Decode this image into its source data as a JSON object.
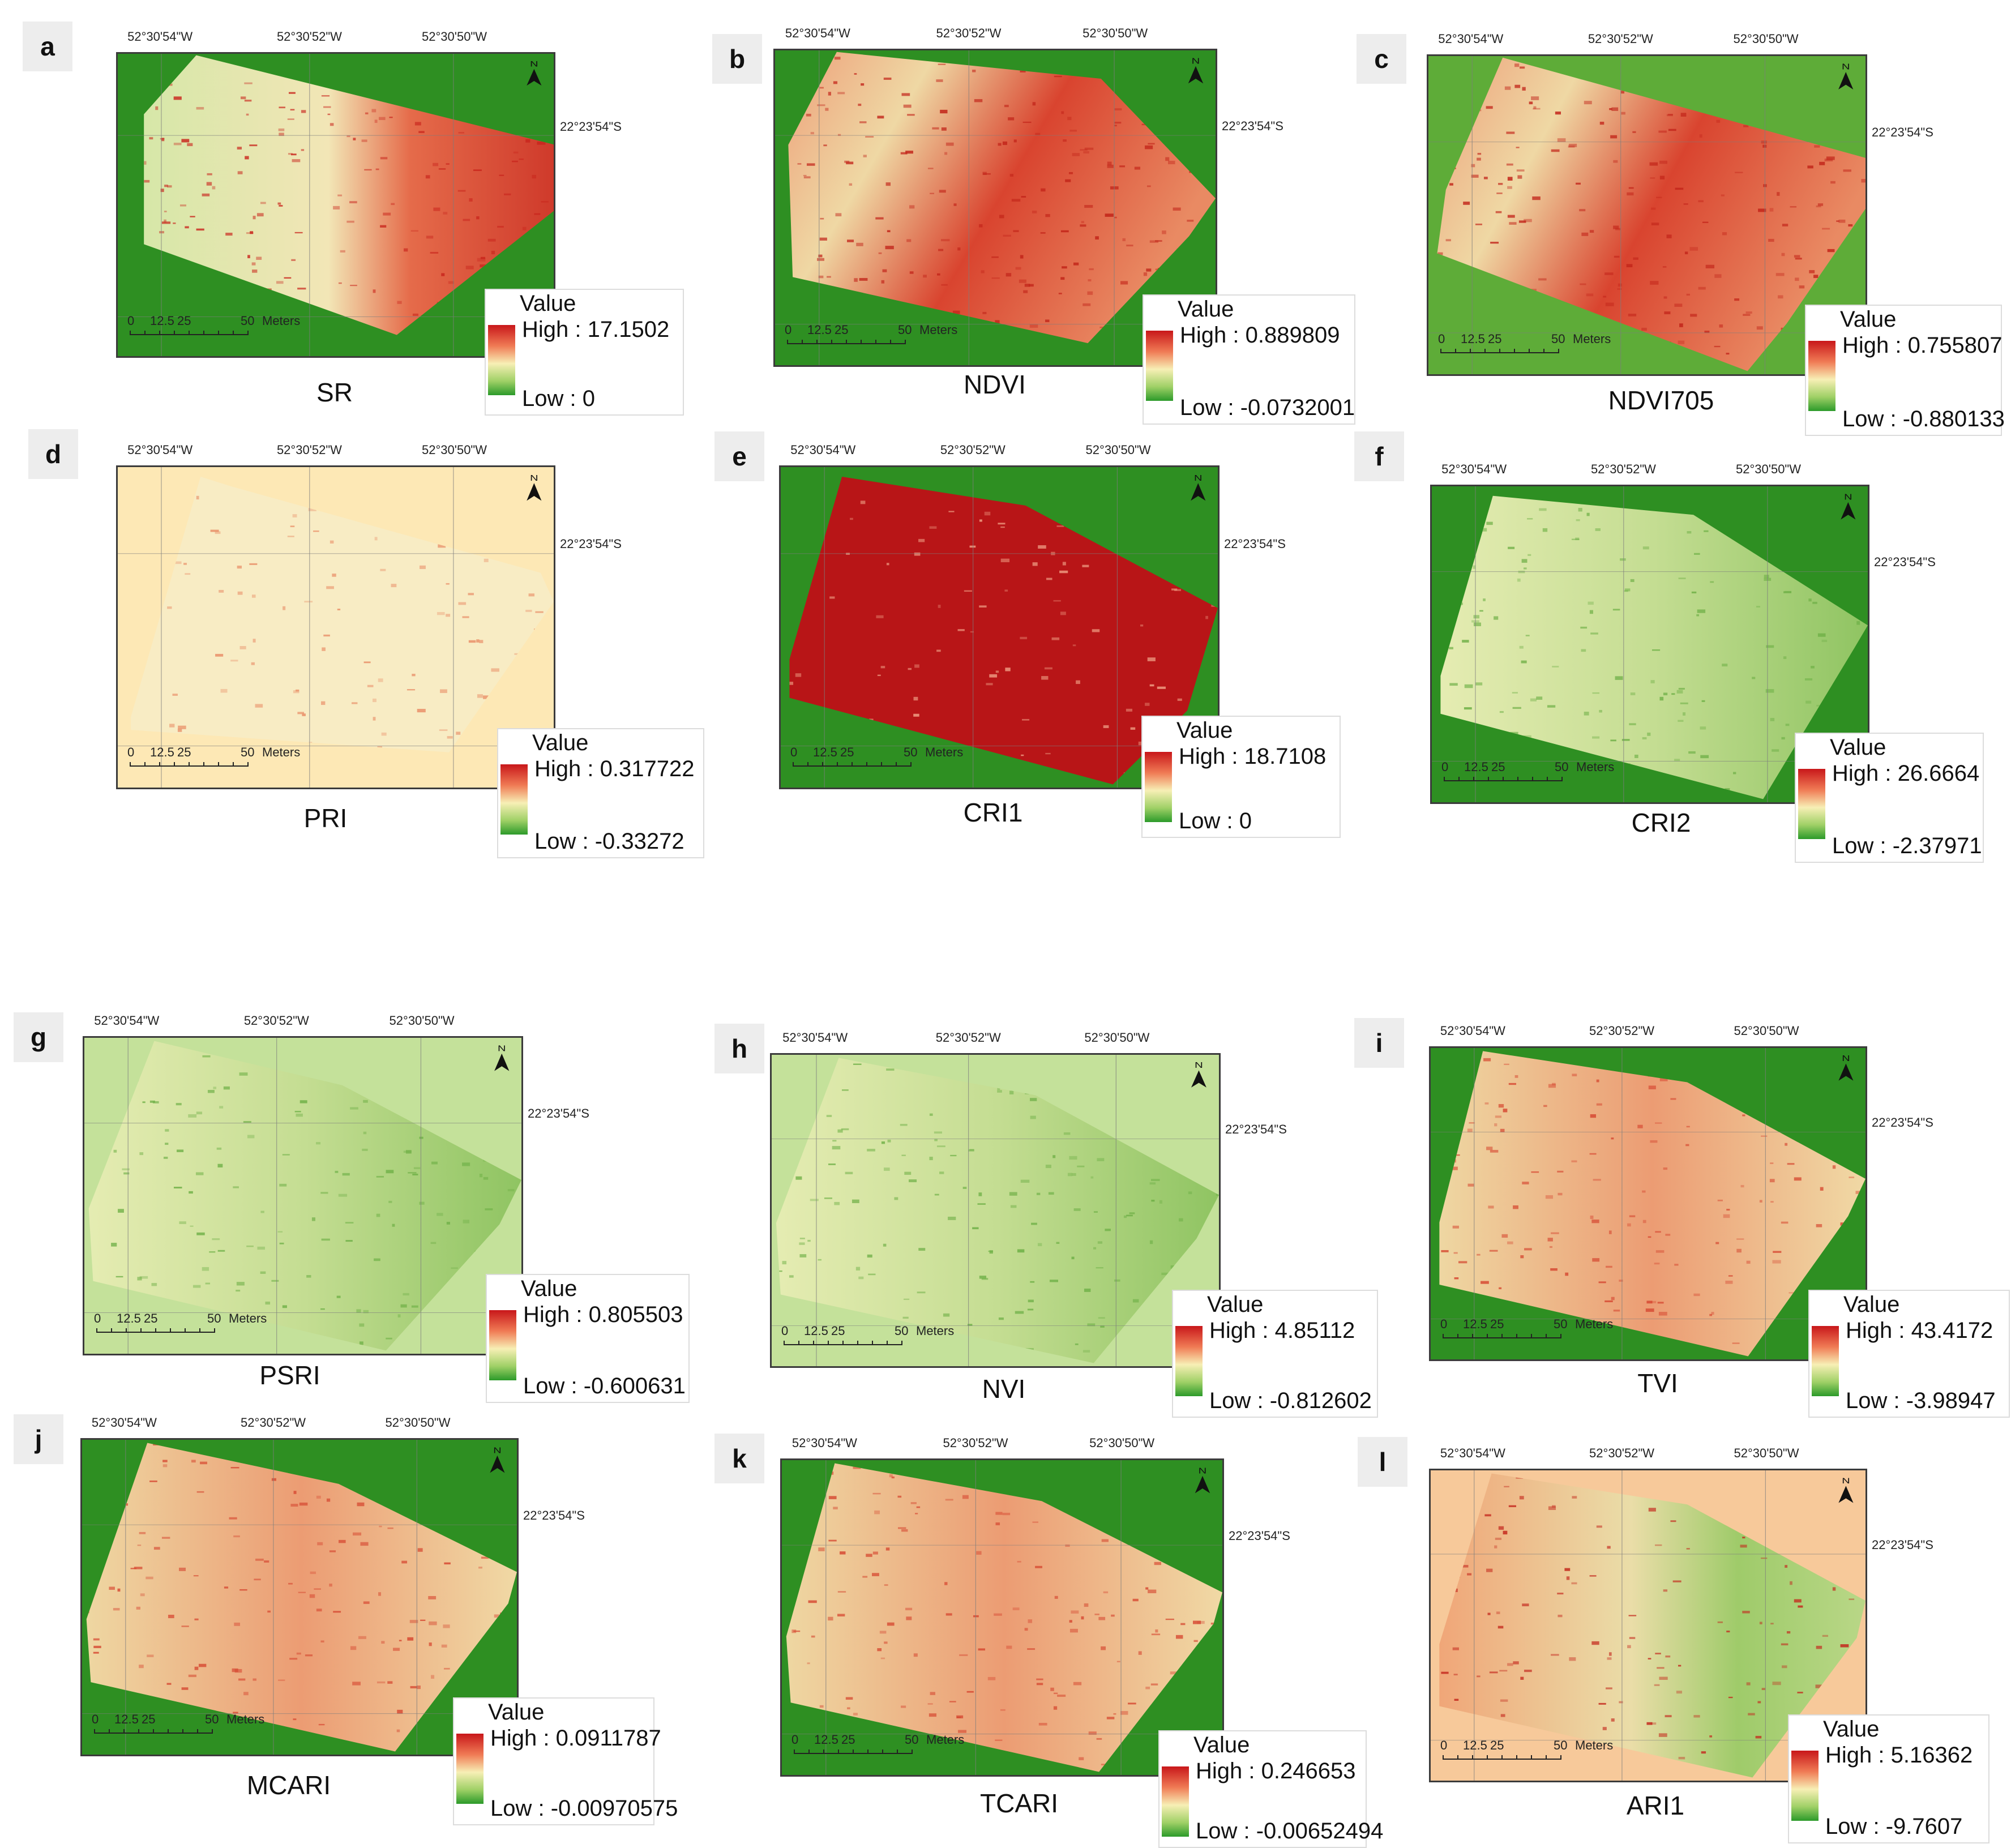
{
  "common": {
    "lon_labels": [
      "52°30'54\"W",
      "52°30'52\"W",
      "52°30'50\"W"
    ],
    "lat_label": "22°23'54\"S",
    "north_letter": "N",
    "legend_title": "Value",
    "scale": {
      "ticks": [
        "0",
        "12.5",
        "25",
        "50"
      ],
      "unit": "Meters"
    }
  },
  "panels": [
    {
      "letter": "a",
      "index": "SR",
      "high": "High : 17.1502",
      "low": "Low : 0",
      "background": "#2e8f22",
      "field": "redeast"
    },
    {
      "letter": "b",
      "index": "NDVI",
      "high": "High : 0.889809",
      "low": "Low : -0.0732001",
      "background": "#2e8f22",
      "field": "redheavy"
    },
    {
      "letter": "c",
      "index": "NDVI705",
      "high": "High : 0.755807",
      "low": "Low : -0.880133",
      "background": "#5eac38",
      "field": "redheavy"
    },
    {
      "letter": "d",
      "index": "PRI",
      "high": "High : 0.317722",
      "low": "Low : -0.33272",
      "background": "#fde8b5",
      "field": "pale"
    },
    {
      "letter": "e",
      "index": "CRI1",
      "high": "High : 18.7108",
      "low": "Low : 0",
      "background": "#2e8f22",
      "field": "solidred"
    },
    {
      "letter": "f",
      "index": "CRI2",
      "high": "High : 26.6664",
      "low": "Low : -2.37971",
      "background": "#2e8f22",
      "field": "greenish"
    },
    {
      "letter": "g",
      "index": "PSRI",
      "high": "High : 0.805503",
      "low": "Low : -0.600631",
      "background": "#c4e19a",
      "field": "greenish"
    },
    {
      "letter": "h",
      "index": "NVI",
      "high": "High : 4.85112",
      "low": "Low : -0.812602",
      "background": "#c4e19a",
      "field": "greenish"
    },
    {
      "letter": "i",
      "index": "TVI",
      "high": "High : 43.4172",
      "low": "Low : -3.98947",
      "background": "#2e8f22",
      "field": "mixed"
    },
    {
      "letter": "j",
      "index": "MCARI",
      "high": "High : 0.0911787",
      "low": "Low : -0.00970575",
      "background": "#2e8f22",
      "field": "mixed"
    },
    {
      "letter": "k",
      "index": "TCARI",
      "high": "High : 0.246653",
      "low": "Low : -0.00652494",
      "background": "#2e8f22",
      "field": "mixed"
    },
    {
      "letter": "l",
      "index": "ARI1",
      "high": "High : 5.16362",
      "low": "Low : -9.7607",
      "background": "#f7c99a",
      "field": "ari"
    }
  ]
}
